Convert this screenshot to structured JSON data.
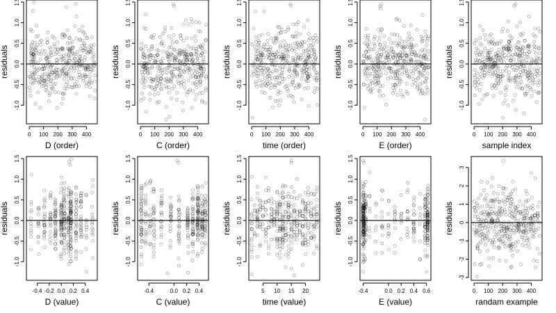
{
  "chart_data": [
    {
      "type": "scatter",
      "xlabel": "D (order)",
      "ylabel": "residuals",
      "xlim": [
        -20,
        475
      ],
      "ylim": [
        -1.45,
        1.55
      ],
      "xticks": [
        0,
        100,
        200,
        300,
        400
      ],
      "xtick_labels": [
        "0",
        "100",
        "200",
        "300",
        "400"
      ],
      "yticks": [
        -1,
        -0.5,
        0,
        0.5,
        1,
        1.5
      ],
      "ytick_labels": [
        "-1.0",
        "-0.5",
        "0.0",
        "0.5",
        "1.0",
        "1.5"
      ],
      "gen": {
        "kind": "index",
        "n": 380,
        "xmax": 460,
        "sd": 0.42,
        "yclip": [
          -1.35,
          1.5
        ],
        "seed": 11
      },
      "x": [
        260,
        325,
        330
      ],
      "y": [
        1.38,
        1.45,
        1.15
      ],
      "zero_line": 0
    },
    {
      "type": "scatter",
      "xlabel": "C (order)",
      "ylabel": "residuals",
      "xlim": [
        -20,
        475
      ],
      "ylim": [
        -1.45,
        1.55
      ],
      "xticks": [
        0,
        100,
        200,
        300,
        400
      ],
      "xtick_labels": [
        "0",
        "100",
        "200",
        "300",
        "400"
      ],
      "yticks": [
        -1,
        -0.5,
        0,
        0.5,
        1,
        1.5
      ],
      "ytick_labels": [
        "-1.0",
        "-0.5",
        "0.0",
        "0.5",
        "1.0",
        "1.5"
      ],
      "gen": {
        "kind": "index",
        "n": 380,
        "xmax": 460,
        "sd": 0.42,
        "yclip": [
          -1.35,
          1.5
        ],
        "seed": 23
      },
      "x": [
        230,
        235,
        200
      ],
      "y": [
        1.45,
        1.4,
        -1.28
      ],
      "zero_line": 0
    },
    {
      "type": "scatter",
      "xlabel": "time (order)",
      "ylabel": "residuals",
      "xlim": [
        -20,
        475
      ],
      "ylim": [
        -1.45,
        1.55
      ],
      "xticks": [
        0,
        100,
        200,
        300,
        400
      ],
      "xtick_labels": [
        "0",
        "100",
        "200",
        "300",
        "400"
      ],
      "yticks": [
        -1,
        -0.5,
        0,
        0.5,
        1,
        1.5
      ],
      "ytick_labels": [
        "-1.0",
        "-0.5",
        "0.0",
        "0.5",
        "1.0",
        "1.5"
      ],
      "gen": {
        "kind": "index",
        "n": 380,
        "xmax": 460,
        "sd": 0.42,
        "yclip": [
          -1.35,
          1.5
        ],
        "seed": 37
      },
      "x": [
        270,
        275,
        5
      ],
      "y": [
        1.45,
        1.4,
        -1.3
      ],
      "zero_line": 0
    },
    {
      "type": "scatter",
      "xlabel": "E (order)",
      "ylabel": "residuals",
      "xlim": [
        -20,
        475
      ],
      "ylim": [
        -1.45,
        1.55
      ],
      "xticks": [
        0,
        100,
        200,
        300,
        400
      ],
      "xtick_labels": [
        "0",
        "100",
        "200",
        "300",
        "400"
      ],
      "yticks": [
        -1,
        -0.5,
        0,
        0.5,
        1,
        1.5
      ],
      "ytick_labels": [
        "-1.0",
        "-0.5",
        "0.0",
        "0.5",
        "1.0",
        "1.5"
      ],
      "gen": {
        "kind": "index",
        "n": 380,
        "xmax": 460,
        "sd": 0.42,
        "yclip": [
          -1.35,
          1.5
        ],
        "seed": 41
      },
      "x": [
        120,
        130,
        125
      ],
      "y": [
        1.4,
        1.45,
        1.35
      ],
      "zero_line": 0
    },
    {
      "type": "scatter",
      "xlabel": "sample index",
      "ylabel": "residuals",
      "xlim": [
        -20,
        475
      ],
      "ylim": [
        -1.45,
        1.55
      ],
      "xticks": [
        0,
        100,
        200,
        300,
        400
      ],
      "xtick_labels": [
        "0",
        "100",
        "200",
        "300",
        "400"
      ],
      "yticks": [
        -1,
        -0.5,
        0,
        0.5,
        1,
        1.5
      ],
      "ytick_labels": [
        "-1.0",
        "-0.5",
        "0.0",
        "0.5",
        "1.0",
        "1.5"
      ],
      "gen": {
        "kind": "index",
        "n": 380,
        "xmax": 460,
        "sd": 0.42,
        "yclip": [
          -1.35,
          1.5
        ],
        "seed": 53
      },
      "x": [
        280,
        290,
        200
      ],
      "y": [
        1.4,
        1.45,
        -1.3
      ],
      "zero_line": 0
    },
    {
      "type": "scatter",
      "xlabel": "D (value)",
      "ylabel": "residuals",
      "xlim": [
        -0.58,
        0.6
      ],
      "ylim": [
        -1.45,
        1.55
      ],
      "xticks": [
        -0.4,
        -0.2,
        0,
        0.2,
        0.4
      ],
      "xtick_labels": [
        "-0.4",
        "-0.2",
        "0.0",
        "0.2",
        "0.4"
      ],
      "yticks": [
        -1,
        -0.5,
        0,
        0.5,
        1,
        1.5
      ],
      "ytick_labels": [
        "-1.0",
        "-0.5",
        "0.0",
        "0.5",
        "1.0",
        "1.5"
      ],
      "gen": {
        "kind": "value",
        "n": 370,
        "levels": [
          -0.5,
          -0.38,
          -0.28,
          -0.18,
          -0.1,
          0.0,
          0.05,
          0.12,
          0.16,
          0.25,
          0.33,
          0.42,
          0.52
        ],
        "weights": [
          2,
          2,
          3,
          4,
          5,
          6,
          5,
          7,
          8,
          4,
          3,
          2,
          2
        ],
        "jitter": 0.008,
        "sd": 0.42,
        "yclip": [
          -1.35,
          1.5
        ],
        "seed": 61
      },
      "x": [
        0.13,
        0.17,
        0.15
      ],
      "y": [
        1.42,
        1.48,
        1.35
      ],
      "zero_line": 0
    },
    {
      "type": "scatter",
      "xlabel": "C (value)",
      "ylabel": "residuals",
      "xlim": [
        -0.58,
        0.55
      ],
      "ylim": [
        -1.45,
        1.55
      ],
      "xticks": [
        -0.4,
        0,
        0.2,
        0.4
      ],
      "xtick_labels": [
        "-0.4",
        "0.0",
        "0.2",
        "0.4"
      ],
      "yticks": [
        -1,
        -0.5,
        0,
        0.5,
        1,
        1.5
      ],
      "ytick_labels": [
        "-1.0",
        "-0.5",
        "0.0",
        "0.5",
        "1.0",
        "1.5"
      ],
      "gen": {
        "kind": "value",
        "n": 370,
        "levels": [
          -0.52,
          -0.45,
          -0.38,
          -0.32,
          -0.2,
          -0.05,
          0.08,
          0.22,
          0.3,
          0.38,
          0.45,
          0.5
        ],
        "weights": [
          6,
          4,
          3,
          4,
          3,
          3,
          3,
          4,
          5,
          7,
          6,
          4
        ],
        "jitter": 0.008,
        "sd": 0.4,
        "yclip": [
          -1.35,
          1.5
        ],
        "seed": 71
      },
      "x": [
        0.05,
        0.07,
        -0.1
      ],
      "y": [
        1.45,
        1.4,
        -1.28
      ],
      "zero_line": 0
    },
    {
      "type": "scatter",
      "xlabel": "time (value)",
      "ylabel": "residuals",
      "xlim": [
        0,
        25
      ],
      "ylim": [
        -1.45,
        1.55
      ],
      "xticks": [
        5,
        10,
        15,
        20
      ],
      "xtick_labels": [
        "5",
        "10",
        "15",
        "20"
      ],
      "yticks": [
        -1,
        -0.5,
        0,
        0.5,
        1,
        1.5
      ],
      "ytick_labels": [
        "-1.0",
        "-0.5",
        "0.0",
        "0.5",
        "1.0",
        "1.5"
      ],
      "gen": {
        "kind": "value",
        "n": 370,
        "levels": [
          1,
          2,
          3,
          4,
          5,
          6,
          7,
          8,
          9,
          10,
          11,
          12,
          13,
          14,
          15,
          16,
          17,
          18,
          19,
          20,
          21,
          22,
          23,
          24
        ],
        "weights": [
          3,
          3,
          3,
          3,
          3,
          3,
          3,
          4,
          4,
          4,
          5,
          5,
          4,
          4,
          3,
          3,
          3,
          3,
          3,
          3,
          3,
          3,
          3,
          3
        ],
        "jitter": 0.05,
        "sd": 0.42,
        "yclip": [
          -1.35,
          1.5
        ],
        "seed": 83
      },
      "x": [
        15,
        15,
        1
      ],
      "y": [
        1.45,
        1.4,
        -1.3
      ],
      "zero_line": 0
    },
    {
      "type": "scatter",
      "xlabel": "E (value)",
      "ylabel": "residuals",
      "xlim": [
        -0.45,
        0.67
      ],
      "ylim": [
        -1.45,
        1.55
      ],
      "xticks": [
        -0.4,
        0,
        0.2,
        0.4,
        0.6
      ],
      "xtick_labels": [
        "-0.4",
        "0.0",
        "0.2",
        "0.4",
        "0.6"
      ],
      "yticks": [
        -1,
        -0.5,
        0,
        0.5,
        1,
        1.5
      ],
      "ytick_labels": [
        "-1.0",
        "-0.5",
        "0.0",
        "0.5",
        "1.0",
        "1.5"
      ],
      "gen": {
        "kind": "value",
        "n": 370,
        "levels": [
          -0.4,
          -0.38,
          -0.36,
          -0.3,
          -0.2,
          -0.1,
          0.0,
          0.1,
          0.2,
          0.3,
          0.4,
          0.5,
          0.58,
          0.62
        ],
        "weights": [
          20,
          8,
          4,
          2,
          2,
          2,
          3,
          2,
          2,
          2,
          3,
          3,
          7,
          10
        ],
        "jitter": 0.006,
        "sd": 0.42,
        "yclip": [
          -1.35,
          1.5
        ],
        "seed": 97
      },
      "x": [
        -0.4,
        -0.39,
        0.6
      ],
      "y": [
        1.45,
        1.4,
        -1.25
      ],
      "zero_line": 0
    },
    {
      "type": "scatter",
      "xlabel": "randam example",
      "ylabel": "residuals",
      "xlim": [
        -20,
        475
      ],
      "ylim": [
        -3.15,
        3.6
      ],
      "xticks": [
        0,
        100,
        200,
        300,
        400
      ],
      "xtick_labels": [
        "0",
        "100",
        "200",
        "300",
        "400"
      ],
      "yticks": [
        -3,
        -2,
        -1,
        0,
        1,
        2,
        3
      ],
      "ytick_labels": [
        "-3",
        "-2",
        "-1",
        "0",
        "1",
        "2",
        "3"
      ],
      "gen": {
        "kind": "index",
        "n": 380,
        "xmax": 460,
        "sd": 0.95,
        "yclip": [
          -3.0,
          3.4
        ],
        "seed": 101
      },
      "x": [
        205,
        20,
        440
      ],
      "y": [
        3.35,
        -2.95,
        -2.1
      ],
      "zero_line": 0
    }
  ]
}
